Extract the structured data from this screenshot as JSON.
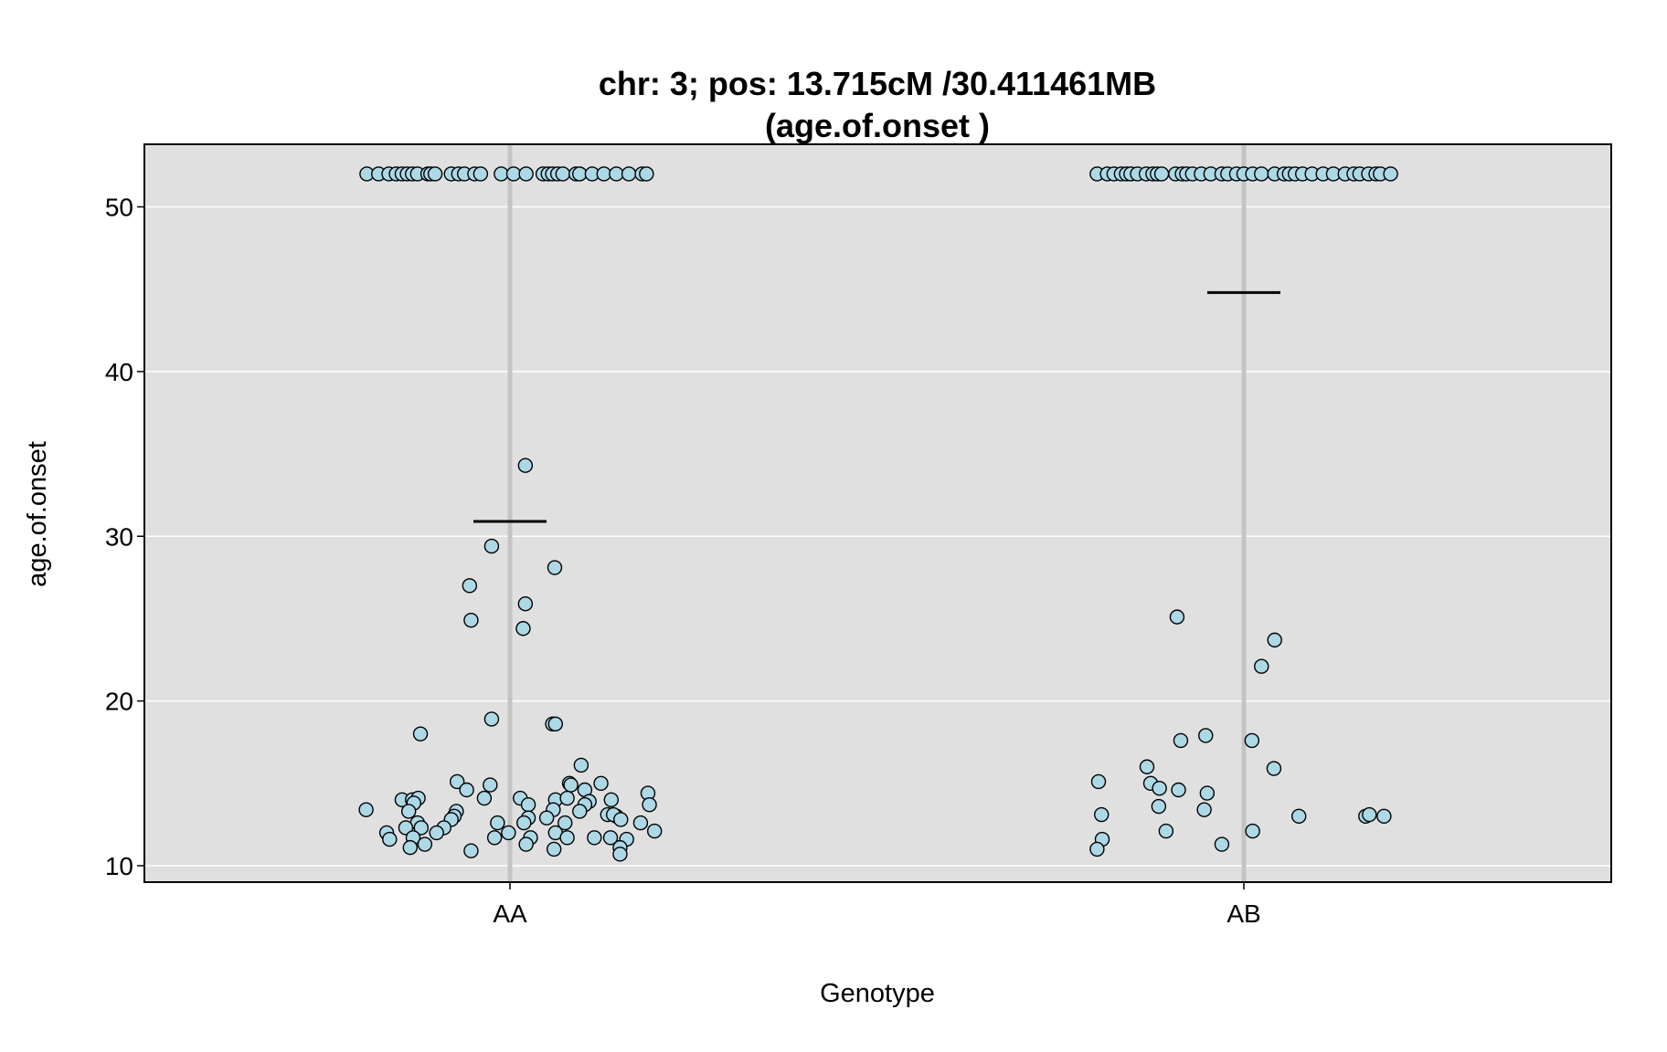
{
  "chart_data": {
    "type": "scatter",
    "title": [
      "chr: 3; pos: 13.715cM /30.411461MB",
      "(age.of.onset )"
    ],
    "xlabel": "Genotype",
    "ylabel": "age.of.onset",
    "categories": [
      "AA",
      "AB"
    ],
    "ylim": [
      9.0,
      53.8
    ],
    "y_ticks": [
      10,
      20,
      30,
      40,
      50
    ],
    "y_tick_labels": [
      "10",
      "20",
      "30",
      "40",
      "50"
    ],
    "grid": true,
    "colors": {
      "panel_background": "#e0e0e0",
      "grid": "#ffffff",
      "category_line": "#c4c4c4",
      "point_fill": "#add8e6",
      "point_stroke": "#000000",
      "mean_line": "#000000"
    },
    "series": [
      {
        "category": "AA",
        "mean": 30.9,
        "points": [
          {
            "x": -0.195,
            "y": 52
          },
          {
            "x": -0.179,
            "y": 52
          },
          {
            "x": -0.165,
            "y": 52
          },
          {
            "x": -0.155,
            "y": 52
          },
          {
            "x": -0.147,
            "y": 52
          },
          {
            "x": -0.14,
            "y": 52
          },
          {
            "x": -0.133,
            "y": 52
          },
          {
            "x": -0.126,
            "y": 52
          },
          {
            "x": -0.112,
            "y": 52
          },
          {
            "x": -0.108,
            "y": 52
          },
          {
            "x": -0.102,
            "y": 52
          },
          {
            "x": -0.08,
            "y": 52
          },
          {
            "x": -0.07,
            "y": 52
          },
          {
            "x": -0.062,
            "y": 52
          },
          {
            "x": -0.048,
            "y": 52
          },
          {
            "x": -0.04,
            "y": 52
          },
          {
            "x": -0.012,
            "y": 52
          },
          {
            "x": 0.005,
            "y": 52
          },
          {
            "x": 0.022,
            "y": 52
          },
          {
            "x": 0.045,
            "y": 52
          },
          {
            "x": 0.052,
            "y": 52
          },
          {
            "x": 0.058,
            "y": 52
          },
          {
            "x": 0.065,
            "y": 52
          },
          {
            "x": 0.072,
            "y": 52
          },
          {
            "x": 0.09,
            "y": 52
          },
          {
            "x": 0.095,
            "y": 52
          },
          {
            "x": 0.112,
            "y": 52
          },
          {
            "x": 0.128,
            "y": 52
          },
          {
            "x": 0.145,
            "y": 52
          },
          {
            "x": 0.162,
            "y": 52
          },
          {
            "x": 0.18,
            "y": 52
          },
          {
            "x": 0.186,
            "y": 52
          },
          {
            "x": 0.021,
            "y": 34.3
          },
          {
            "x": -0.025,
            "y": 29.4
          },
          {
            "x": 0.061,
            "y": 28.1
          },
          {
            "x": -0.055,
            "y": 27.0
          },
          {
            "x": 0.021,
            "y": 25.9
          },
          {
            "x": -0.053,
            "y": 24.9
          },
          {
            "x": 0.018,
            "y": 24.4
          },
          {
            "x": -0.025,
            "y": 18.9
          },
          {
            "x": 0.058,
            "y": 18.6
          },
          {
            "x": 0.062,
            "y": 18.6
          },
          {
            "x": -0.122,
            "y": 18.0
          },
          {
            "x": 0.097,
            "y": 16.1
          },
          {
            "x": -0.072,
            "y": 15.1
          },
          {
            "x": 0.124,
            "y": 15.0
          },
          {
            "x": -0.027,
            "y": 14.9
          },
          {
            "x": 0.081,
            "y": 15.0
          },
          {
            "x": 0.083,
            "y": 14.9
          },
          {
            "x": -0.059,
            "y": 14.6
          },
          {
            "x": 0.102,
            "y": 14.6
          },
          {
            "x": 0.188,
            "y": 14.4
          },
          {
            "x": -0.147,
            "y": 14.0
          },
          {
            "x": -0.133,
            "y": 14.0
          },
          {
            "x": -0.125,
            "y": 14.1
          },
          {
            "x": -0.035,
            "y": 14.1
          },
          {
            "x": 0.014,
            "y": 14.1
          },
          {
            "x": 0.062,
            "y": 14.0
          },
          {
            "x": 0.078,
            "y": 14.1
          },
          {
            "x": 0.138,
            "y": 14.0
          },
          {
            "x": -0.131,
            "y": 13.8
          },
          {
            "x": 0.025,
            "y": 13.7
          },
          {
            "x": 0.108,
            "y": 13.9
          },
          {
            "x": 0.102,
            "y": 13.7
          },
          {
            "x": 0.19,
            "y": 13.7
          },
          {
            "x": -0.196,
            "y": 13.4
          },
          {
            "x": -0.138,
            "y": 13.3
          },
          {
            "x": -0.073,
            "y": 13.3
          },
          {
            "x": 0.059,
            "y": 13.4
          },
          {
            "x": 0.095,
            "y": 13.3
          },
          {
            "x": -0.076,
            "y": 13.0
          },
          {
            "x": 0.025,
            "y": 12.9
          },
          {
            "x": 0.05,
            "y": 12.9
          },
          {
            "x": 0.133,
            "y": 13.1
          },
          {
            "x": 0.145,
            "y": 13.0
          },
          {
            "x": 0.141,
            "y": 13.1
          },
          {
            "x": -0.126,
            "y": 12.6
          },
          {
            "x": -0.08,
            "y": 12.8
          },
          {
            "x": -0.017,
            "y": 12.6
          },
          {
            "x": 0.019,
            "y": 12.6
          },
          {
            "x": 0.075,
            "y": 12.6
          },
          {
            "x": 0.151,
            "y": 12.8
          },
          {
            "x": 0.178,
            "y": 12.6
          },
          {
            "x": -0.142,
            "y": 12.3
          },
          {
            "x": -0.121,
            "y": 12.3
          },
          {
            "x": -0.09,
            "y": 12.3
          },
          {
            "x": -0.168,
            "y": 12.0
          },
          {
            "x": -0.1,
            "y": 12.0
          },
          {
            "x": -0.002,
            "y": 12.0
          },
          {
            "x": 0.062,
            "y": 12.0
          },
          {
            "x": -0.164,
            "y": 11.6
          },
          {
            "x": -0.132,
            "y": 11.7
          },
          {
            "x": -0.021,
            "y": 11.7
          },
          {
            "x": 0.028,
            "y": 11.7
          },
          {
            "x": 0.078,
            "y": 11.7
          },
          {
            "x": 0.115,
            "y": 11.7
          },
          {
            "x": 0.137,
            "y": 11.7
          },
          {
            "x": 0.159,
            "y": 11.6
          },
          {
            "x": -0.136,
            "y": 11.1
          },
          {
            "x": -0.116,
            "y": 11.3
          },
          {
            "x": 0.022,
            "y": 11.3
          },
          {
            "x": 0.06,
            "y": 11.0
          },
          {
            "x": 0.15,
            "y": 11.1
          },
          {
            "x": -0.053,
            "y": 10.9
          },
          {
            "x": 0.15,
            "y": 10.7
          },
          {
            "x": 0.197,
            "y": 12.1
          }
        ]
      },
      {
        "category": "AB",
        "mean": 44.8,
        "points": [
          {
            "x": -0.2,
            "y": 52
          },
          {
            "x": -0.186,
            "y": 52
          },
          {
            "x": -0.177,
            "y": 52
          },
          {
            "x": -0.167,
            "y": 52
          },
          {
            "x": -0.16,
            "y": 52
          },
          {
            "x": -0.154,
            "y": 52
          },
          {
            "x": -0.145,
            "y": 52
          },
          {
            "x": -0.133,
            "y": 52
          },
          {
            "x": -0.124,
            "y": 52
          },
          {
            "x": -0.118,
            "y": 52
          },
          {
            "x": -0.112,
            "y": 52
          },
          {
            "x": -0.093,
            "y": 52
          },
          {
            "x": -0.084,
            "y": 52
          },
          {
            "x": -0.078,
            "y": 52
          },
          {
            "x": -0.07,
            "y": 52
          },
          {
            "x": -0.058,
            "y": 52
          },
          {
            "x": -0.045,
            "y": 52
          },
          {
            "x": -0.03,
            "y": 52
          },
          {
            "x": -0.022,
            "y": 52
          },
          {
            "x": -0.01,
            "y": 52
          },
          {
            "x": 0.0,
            "y": 52
          },
          {
            "x": 0.012,
            "y": 52
          },
          {
            "x": 0.024,
            "y": 52
          },
          {
            "x": 0.042,
            "y": 52
          },
          {
            "x": 0.055,
            "y": 52
          },
          {
            "x": 0.062,
            "y": 52
          },
          {
            "x": 0.07,
            "y": 52
          },
          {
            "x": 0.08,
            "y": 52
          },
          {
            "x": 0.093,
            "y": 52
          },
          {
            "x": 0.108,
            "y": 52
          },
          {
            "x": 0.122,
            "y": 52
          },
          {
            "x": 0.138,
            "y": 52
          },
          {
            "x": 0.15,
            "y": 52
          },
          {
            "x": 0.158,
            "y": 52
          },
          {
            "x": 0.17,
            "y": 52
          },
          {
            "x": 0.18,
            "y": 52
          },
          {
            "x": 0.186,
            "y": 52
          },
          {
            "x": 0.2,
            "y": 52
          },
          {
            "x": -0.091,
            "y": 25.1
          },
          {
            "x": 0.042,
            "y": 23.7
          },
          {
            "x": 0.024,
            "y": 22.1
          },
          {
            "x": -0.052,
            "y": 17.9
          },
          {
            "x": -0.086,
            "y": 17.6
          },
          {
            "x": 0.011,
            "y": 17.6
          },
          {
            "x": 0.041,
            "y": 15.9
          },
          {
            "x": -0.132,
            "y": 16.0
          },
          {
            "x": -0.198,
            "y": 15.1
          },
          {
            "x": -0.127,
            "y": 15.0
          },
          {
            "x": -0.115,
            "y": 14.7
          },
          {
            "x": -0.089,
            "y": 14.6
          },
          {
            "x": -0.05,
            "y": 14.4
          },
          {
            "x": -0.116,
            "y": 13.6
          },
          {
            "x": -0.054,
            "y": 13.4
          },
          {
            "x": -0.194,
            "y": 13.1
          },
          {
            "x": 0.075,
            "y": 13.0
          },
          {
            "x": 0.166,
            "y": 13.0
          },
          {
            "x": 0.171,
            "y": 13.1
          },
          {
            "x": 0.191,
            "y": 13.0
          },
          {
            "x": -0.106,
            "y": 12.1
          },
          {
            "x": 0.012,
            "y": 12.1
          },
          {
            "x": -0.193,
            "y": 11.6
          },
          {
            "x": -0.03,
            "y": 11.3
          },
          {
            "x": -0.2,
            "y": 11.0
          }
        ]
      }
    ]
  }
}
